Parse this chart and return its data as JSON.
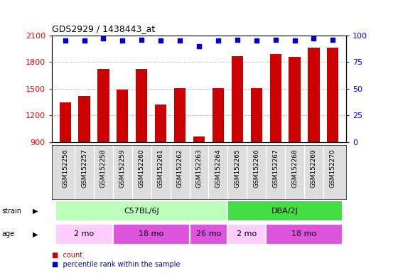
{
  "title": "GDS2929 / 1438443_at",
  "samples": [
    "GSM152256",
    "GSM152257",
    "GSM152258",
    "GSM152259",
    "GSM152260",
    "GSM152261",
    "GSM152262",
    "GSM152263",
    "GSM152264",
    "GSM152265",
    "GSM152266",
    "GSM152267",
    "GSM152268",
    "GSM152269",
    "GSM152270"
  ],
  "counts": [
    1350,
    1420,
    1720,
    1490,
    1720,
    1320,
    1510,
    960,
    1510,
    1870,
    1510,
    1890,
    1860,
    1960,
    1960
  ],
  "percentile": [
    95,
    95,
    97,
    95,
    96,
    95,
    95,
    90,
    95,
    96,
    95,
    96,
    95,
    97,
    96
  ],
  "ylim_left": [
    900,
    2100
  ],
  "ylim_right": [
    0,
    100
  ],
  "yticks_left": [
    900,
    1200,
    1500,
    1800,
    2100
  ],
  "yticks_right": [
    0,
    25,
    50,
    75,
    100
  ],
  "bar_color": "#cc0000",
  "dot_color": "#0000cc",
  "strain_groups": [
    {
      "label": "C57BL/6J",
      "start": 0,
      "end": 9,
      "color": "#bbffbb"
    },
    {
      "label": "DBA/2J",
      "start": 9,
      "end": 15,
      "color": "#44dd44"
    }
  ],
  "age_groups": [
    {
      "label": "2 mo",
      "start": 0,
      "end": 3,
      "color": "#ffccff"
    },
    {
      "label": "18 mo",
      "start": 3,
      "end": 7,
      "color": "#dd55dd"
    },
    {
      "label": "26 mo",
      "start": 7,
      "end": 9,
      "color": "#dd55dd"
    },
    {
      "label": "2 mo",
      "start": 9,
      "end": 11,
      "color": "#ffccff"
    },
    {
      "label": "18 mo",
      "start": 11,
      "end": 15,
      "color": "#dd55dd"
    }
  ],
  "background_color": "#ffffff",
  "grid_color": "#888888",
  "xticklabel_bg": "#dddddd"
}
